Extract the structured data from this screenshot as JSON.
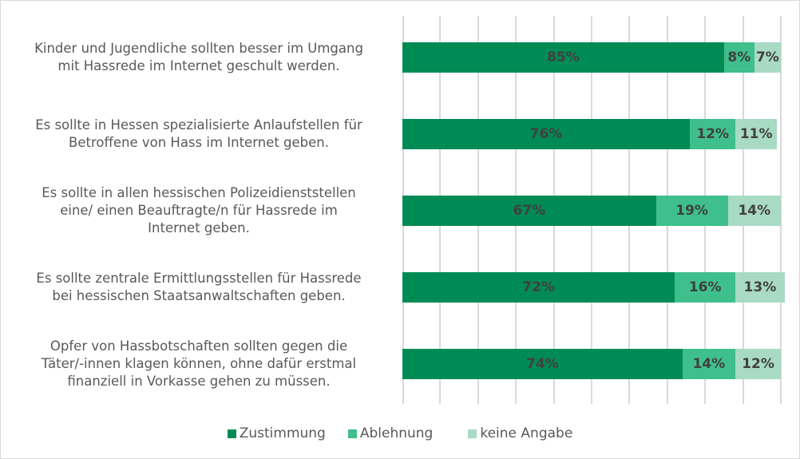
{
  "colors": {
    "zustimmung": "#008B55",
    "ablehnung": "#3FBF8C",
    "keine_angabe": "#A8DAC4"
  },
  "chart_data": {
    "type": "bar",
    "orientation": "horizontal",
    "stacked": true,
    "percent_stacked": true,
    "title": "",
    "xlabel": "",
    "ylabel": "",
    "xlim": [
      0,
      100
    ],
    "grid": true,
    "gridlines_x": [
      0,
      10,
      20,
      30,
      40,
      50,
      60,
      70,
      80,
      90,
      100
    ],
    "legend_position": "bottom",
    "categories": [
      "Kinder und Jugendliche sollten besser im Umgang mit Hassrede im Internet geschult werden.",
      "Es sollte in Hessen spezialisierte Anlaufstellen für Betroffene von Hass im Internet geben.",
      "Es sollte in allen hessischen Polizeidienststellen eine/ einen Beauftragte/n für Hassrede im Internet geben.",
      "Es sollte zentrale Ermittlungsstellen für Hassrede bei hessischen Staatsanwaltschaften geben.",
      "Opfer von Hassbotschaften sollten gegen die Täter/-innen klagen können, ohne dafür erstmal finanziell in Vorkasse gehen zu müssen."
    ],
    "series": [
      {
        "name": "Zustimmung",
        "values": [
          85,
          76,
          67,
          72,
          74
        ]
      },
      {
        "name": "Ablehnung",
        "values": [
          8,
          12,
          19,
          16,
          14
        ]
      },
      {
        "name": "keine Angabe",
        "values": [
          7,
          11,
          14,
          13,
          12
        ]
      }
    ]
  },
  "labels": [
    [
      "Kinder und Jugendliche sollten besser im Umgang",
      "mit Hassrede im Internet geschult werden."
    ],
    [
      "Es sollte in Hessen spezialisierte Anlaufstellen für",
      "Betroffene von Hass im Internet geben."
    ],
    [
      "Es sollte in allen hessischen Polizeidienststellen",
      "eine/ einen Beauftragte/n für Hassrede im",
      "Internet geben."
    ],
    [
      "Es sollte zentrale Ermittlungsstellen für Hassrede",
      "bei hessischen Staatsanwaltschaften geben."
    ],
    [
      "Opfer von Hassbotschaften sollten gegen die",
      "Täter/-innen klagen können, ohne dafür erstmal",
      "finanziell in Vorkasse gehen zu müssen."
    ]
  ],
  "legend": {
    "items": [
      "Zustimmung",
      "Ablehnung",
      "keine Angabe"
    ]
  }
}
